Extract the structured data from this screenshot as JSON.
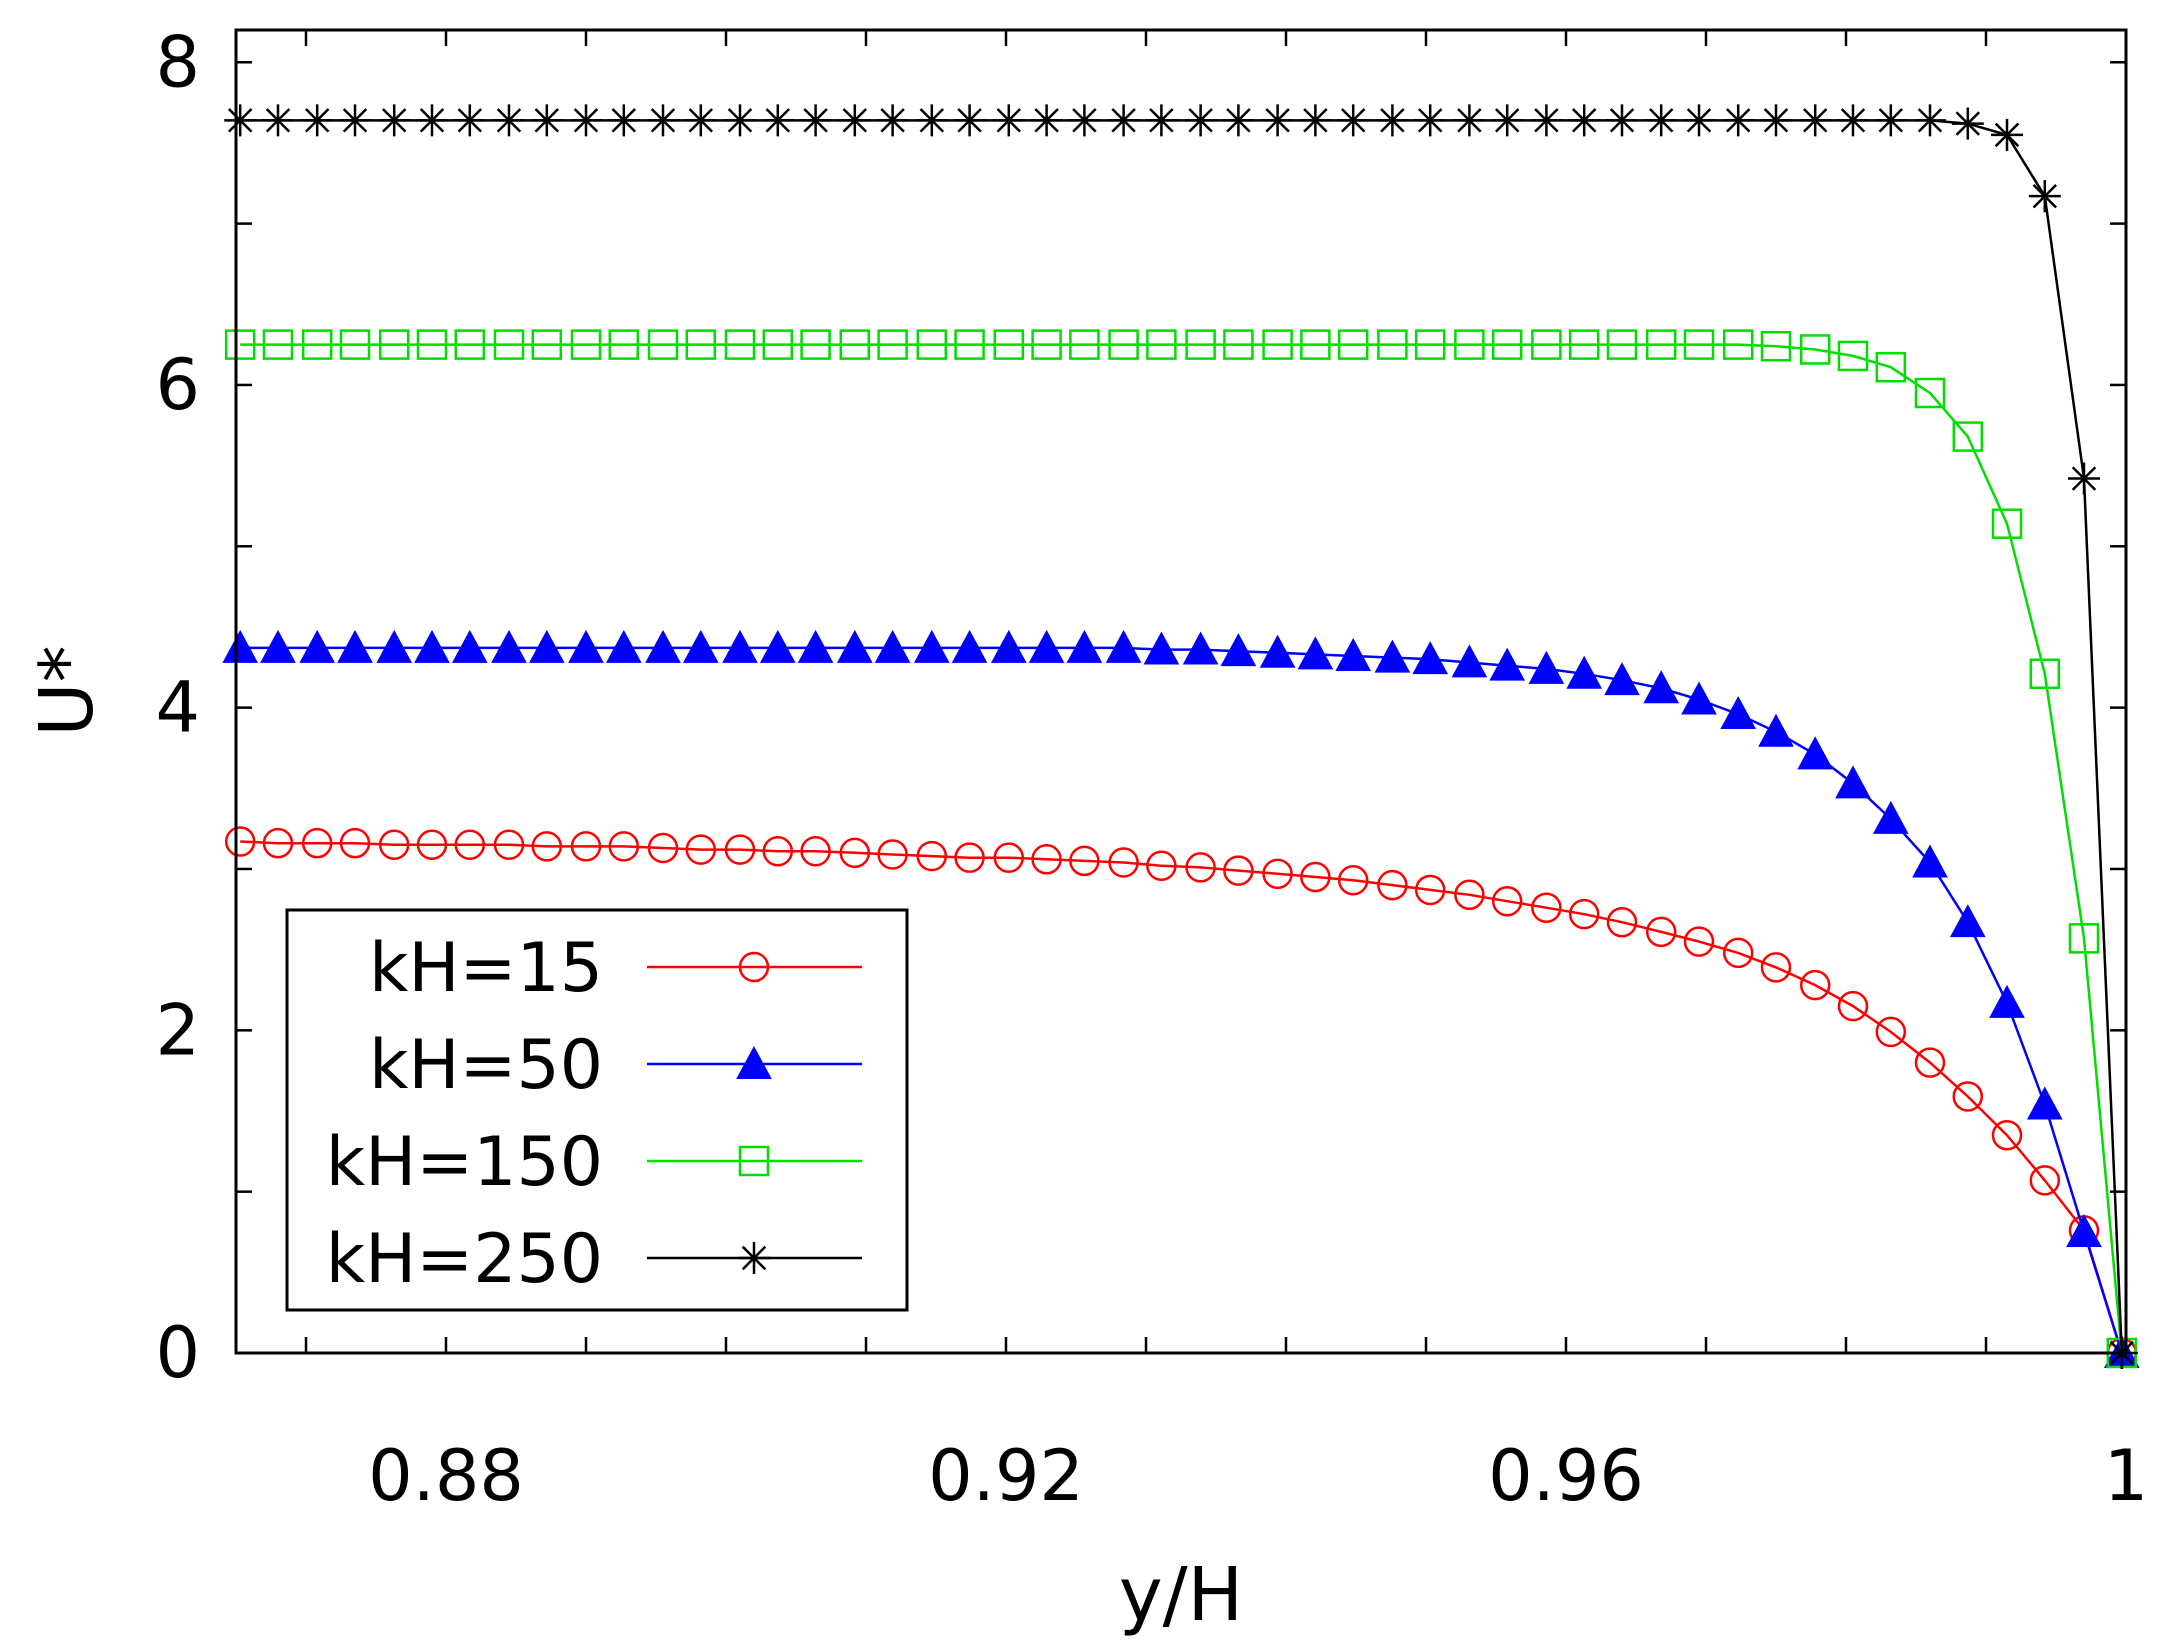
{
  "chart_data": {
    "type": "line",
    "title": "",
    "xlabel": "y/H",
    "ylabel": "U*",
    "xlim": [
      0.865,
      1.0
    ],
    "ylim": [
      0,
      8.2
    ],
    "xticks": [
      0.88,
      0.92,
      0.96,
      1.0
    ],
    "xtick_labels": [
      "0.88",
      "0.92",
      "0.96",
      "1"
    ],
    "yticks": [
      0,
      2,
      4,
      6,
      8
    ],
    "ytick_labels": [
      "0",
      "2",
      "4",
      "6",
      "8"
    ],
    "grid": false,
    "legend_position": "bottom-left",
    "series": [
      {
        "name": "kH=15",
        "color": "#ff0000",
        "marker": "circle",
        "x": [
          0.8653,
          0.868,
          0.8708,
          0.8735,
          0.8763,
          0.879,
          0.8817,
          0.8845,
          0.8872,
          0.89,
          0.8927,
          0.8955,
          0.8982,
          0.901,
          0.9037,
          0.9064,
          0.9092,
          0.9119,
          0.9147,
          0.9174,
          0.9202,
          0.9229,
          0.9256,
          0.9284,
          0.9311,
          0.9339,
          0.9366,
          0.9394,
          0.9421,
          0.9448,
          0.9476,
          0.9503,
          0.9531,
          0.9558,
          0.9586,
          0.9613,
          0.964,
          0.9668,
          0.9695,
          0.9723,
          0.975,
          0.9778,
          0.9805,
          0.9832,
          0.986,
          0.9887,
          0.9915,
          0.9942,
          0.997,
          0.9997
        ],
        "y": [
          3.17,
          3.16,
          3.16,
          3.16,
          3.15,
          3.15,
          3.15,
          3.15,
          3.14,
          3.14,
          3.14,
          3.13,
          3.12,
          3.12,
          3.11,
          3.11,
          3.1,
          3.09,
          3.08,
          3.07,
          3.07,
          3.06,
          3.05,
          3.04,
          3.02,
          3.01,
          2.99,
          2.97,
          2.95,
          2.93,
          2.9,
          2.87,
          2.84,
          2.8,
          2.76,
          2.72,
          2.67,
          2.61,
          2.55,
          2.48,
          2.39,
          2.28,
          2.15,
          1.99,
          1.8,
          1.59,
          1.35,
          1.07,
          0.76,
          0.0
        ]
      },
      {
        "name": "kH=50",
        "color": "#0000ff",
        "marker": "triangle",
        "x": [
          0.8653,
          0.868,
          0.8708,
          0.8735,
          0.8763,
          0.879,
          0.8817,
          0.8845,
          0.8872,
          0.89,
          0.8927,
          0.8955,
          0.8982,
          0.901,
          0.9037,
          0.9064,
          0.9092,
          0.9119,
          0.9147,
          0.9174,
          0.9202,
          0.9229,
          0.9256,
          0.9284,
          0.9311,
          0.9339,
          0.9366,
          0.9394,
          0.9421,
          0.9448,
          0.9476,
          0.9503,
          0.9531,
          0.9558,
          0.9586,
          0.9613,
          0.964,
          0.9668,
          0.9695,
          0.9723,
          0.975,
          0.9778,
          0.9805,
          0.9832,
          0.986,
          0.9887,
          0.9915,
          0.9942,
          0.997,
          0.9997
        ],
        "y": [
          4.37,
          4.37,
          4.37,
          4.37,
          4.37,
          4.37,
          4.37,
          4.37,
          4.37,
          4.37,
          4.37,
          4.37,
          4.37,
          4.37,
          4.37,
          4.37,
          4.37,
          4.37,
          4.37,
          4.37,
          4.37,
          4.37,
          4.37,
          4.37,
          4.36,
          4.36,
          4.35,
          4.34,
          4.33,
          4.32,
          4.31,
          4.3,
          4.28,
          4.26,
          4.24,
          4.21,
          4.17,
          4.12,
          4.05,
          3.96,
          3.85,
          3.71,
          3.53,
          3.31,
          3.04,
          2.67,
          2.17,
          1.54,
          0.75,
          0.0
        ]
      },
      {
        "name": "kH=150",
        "color": "#00dd00",
        "marker": "square",
        "x": [
          0.8653,
          0.868,
          0.8708,
          0.8735,
          0.8763,
          0.879,
          0.8817,
          0.8845,
          0.8872,
          0.89,
          0.8927,
          0.8955,
          0.8982,
          0.901,
          0.9037,
          0.9064,
          0.9092,
          0.9119,
          0.9147,
          0.9174,
          0.9202,
          0.9229,
          0.9256,
          0.9284,
          0.9311,
          0.9339,
          0.9366,
          0.9394,
          0.9421,
          0.9448,
          0.9476,
          0.9503,
          0.9531,
          0.9558,
          0.9586,
          0.9613,
          0.964,
          0.9668,
          0.9695,
          0.9723,
          0.975,
          0.9778,
          0.9805,
          0.9832,
          0.986,
          0.9887,
          0.9915,
          0.9942,
          0.997,
          0.9997
        ],
        "y": [
          6.25,
          6.25,
          6.25,
          6.25,
          6.25,
          6.25,
          6.25,
          6.25,
          6.25,
          6.25,
          6.25,
          6.25,
          6.25,
          6.25,
          6.25,
          6.25,
          6.25,
          6.25,
          6.25,
          6.25,
          6.25,
          6.25,
          6.25,
          6.25,
          6.25,
          6.25,
          6.25,
          6.25,
          6.25,
          6.25,
          6.25,
          6.25,
          6.25,
          6.25,
          6.25,
          6.25,
          6.25,
          6.25,
          6.25,
          6.25,
          6.24,
          6.22,
          6.18,
          6.11,
          5.95,
          5.68,
          5.14,
          4.21,
          2.57,
          0.0
        ]
      },
      {
        "name": "kH=250",
        "color": "#000000",
        "marker": "star",
        "x": [
          0.8653,
          0.868,
          0.8708,
          0.8735,
          0.8763,
          0.879,
          0.8817,
          0.8845,
          0.8872,
          0.89,
          0.8927,
          0.8955,
          0.8982,
          0.901,
          0.9037,
          0.9064,
          0.9092,
          0.9119,
          0.9147,
          0.9174,
          0.9202,
          0.9229,
          0.9256,
          0.9284,
          0.9311,
          0.9339,
          0.9366,
          0.9394,
          0.9421,
          0.9448,
          0.9476,
          0.9503,
          0.9531,
          0.9558,
          0.9586,
          0.9613,
          0.964,
          0.9668,
          0.9695,
          0.9723,
          0.975,
          0.9778,
          0.9805,
          0.9832,
          0.986,
          0.9887,
          0.9915,
          0.9942,
          0.997,
          0.9997
        ],
        "y": [
          7.64,
          7.64,
          7.64,
          7.64,
          7.64,
          7.64,
          7.64,
          7.64,
          7.64,
          7.64,
          7.64,
          7.64,
          7.64,
          7.64,
          7.64,
          7.64,
          7.64,
          7.64,
          7.64,
          7.64,
          7.64,
          7.64,
          7.64,
          7.64,
          7.64,
          7.64,
          7.64,
          7.64,
          7.64,
          7.64,
          7.64,
          7.64,
          7.64,
          7.64,
          7.64,
          7.64,
          7.64,
          7.64,
          7.64,
          7.64,
          7.64,
          7.64,
          7.64,
          7.64,
          7.64,
          7.62,
          7.55,
          7.17,
          5.42,
          0.0
        ]
      }
    ]
  }
}
